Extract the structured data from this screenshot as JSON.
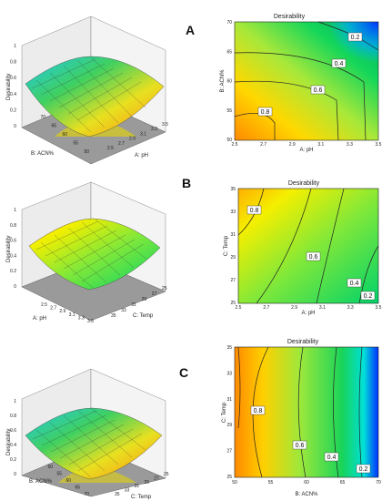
{
  "chart_data": [
    {
      "type": "surface",
      "panel": "A",
      "title": "",
      "zlabel": "Desirability",
      "z_ticks": [
        "0",
        "0.2",
        "0.4",
        "0.6",
        "0.8",
        "1"
      ],
      "x_axis": {
        "label": "A: pH",
        "ticks": [
          "2.5",
          "2.7",
          "2.9",
          "3.1",
          "3.3",
          "3.5"
        ]
      },
      "y_axis": {
        "label": "B: ACN%",
        "ticks": [
          "50",
          "55",
          "60",
          "65",
          "70"
        ]
      },
      "surface_z_range": [
        0.2,
        0.9
      ],
      "colormap": [
        "#0044ff",
        "#00cc66",
        "#ffee00",
        "#ff8800"
      ]
    },
    {
      "type": "contour",
      "panel": "A",
      "title": "Desirability",
      "xlabel": "A: pH",
      "ylabel": "B: ACN%",
      "x_ticks": [
        "2.5",
        "2.7",
        "2.9",
        "3.1",
        "3.3",
        "3.5"
      ],
      "y_ticks": [
        "50",
        "55",
        "60",
        "65",
        "70"
      ],
      "xlim": [
        2.5,
        3.5
      ],
      "ylim": [
        50,
        70
      ],
      "contour_labels": [
        "0.2",
        "0.4",
        "0.6",
        "0.8"
      ]
    },
    {
      "type": "surface",
      "panel": "B",
      "title": "",
      "zlabel": "Desirability",
      "z_ticks": [
        "0",
        "0.2",
        "0.4",
        "0.6",
        "0.8",
        "1"
      ],
      "x_axis": {
        "label": "A: pH",
        "ticks": [
          "2.5",
          "2.7",
          "2.9",
          "3.1",
          "3.3",
          "3.5"
        ]
      },
      "y_axis": {
        "label": "C: Temp",
        "ticks": [
          "25",
          "27",
          "29",
          "31",
          "33",
          "35"
        ]
      },
      "surface_z_range": [
        0.2,
        0.85
      ],
      "colormap": [
        "#0044ff",
        "#00cc66",
        "#ffee00",
        "#ff8800"
      ]
    },
    {
      "type": "contour",
      "panel": "B",
      "title": "Desirability",
      "xlabel": "A: pH",
      "ylabel": "C: Temp",
      "x_ticks": [
        "2.5",
        "2.7",
        "2.9",
        "3.1",
        "3.3",
        "3.5"
      ],
      "y_ticks": [
        "25",
        "27",
        "29",
        "31",
        "33",
        "35"
      ],
      "xlim": [
        2.5,
        3.5
      ],
      "ylim": [
        25,
        35
      ],
      "contour_labels": [
        "0.2",
        "0.4",
        "0.6",
        "0.8"
      ]
    },
    {
      "type": "surface",
      "panel": "C",
      "title": "",
      "zlabel": "Desirability",
      "z_ticks": [
        "0",
        "0.2",
        "0.4",
        "0.6",
        "0.8",
        "1"
      ],
      "x_axis": {
        "label": "B: ACN%",
        "ticks": [
          "50",
          "55",
          "60",
          "65",
          "70"
        ]
      },
      "y_axis": {
        "label": "C: Temp",
        "ticks": [
          "25",
          "27",
          "29",
          "31",
          "33",
          "35"
        ]
      },
      "surface_z_range": [
        0.15,
        0.85
      ],
      "colormap": [
        "#0044ff",
        "#00cc66",
        "#ffee00",
        "#ff8800"
      ]
    },
    {
      "type": "contour",
      "panel": "C",
      "title": "Desirability",
      "xlabel": "B: ACN%",
      "ylabel": "C: Temp",
      "x_ticks": [
        "50",
        "55",
        "60",
        "65",
        "70"
      ],
      "y_ticks": [
        "25",
        "27",
        "29",
        "31",
        "33",
        "35"
      ],
      "xlim": [
        50,
        70
      ],
      "ylim": [
        25,
        35
      ],
      "contour_labels": [
        "0.2",
        "0.4",
        "0.6",
        "0.8"
      ]
    }
  ],
  "panel_labels": [
    "A",
    "B",
    "C"
  ]
}
